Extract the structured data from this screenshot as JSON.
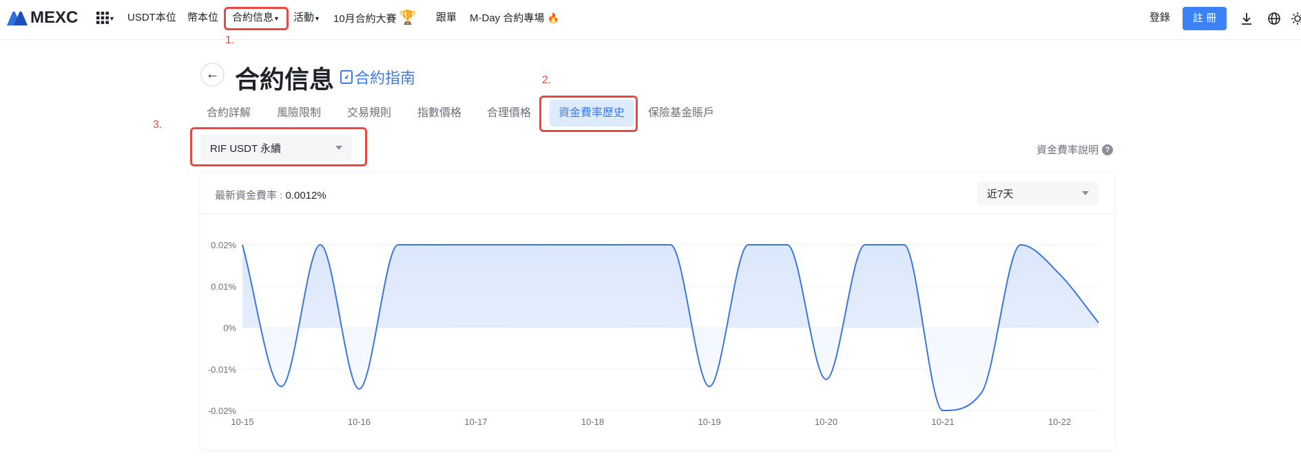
{
  "nav": {
    "logo": "MEXC",
    "items": [
      {
        "label": "USDT本位"
      },
      {
        "label": "幣本位"
      },
      {
        "label": "合約信息"
      },
      {
        "label": "活動"
      },
      {
        "label": "10月合約大賽"
      },
      {
        "label": "跟單"
      },
      {
        "label": "M-Day 合約專場"
      }
    ],
    "login": "登錄",
    "register": "註 冊"
  },
  "annotations": [
    "1.",
    "2.",
    "3."
  ],
  "page": {
    "title": "合約信息",
    "guide_link": "合約指南",
    "tabs": [
      {
        "label": "合約詳解"
      },
      {
        "label": "風險限制"
      },
      {
        "label": "交易規則"
      },
      {
        "label": "指數價格"
      },
      {
        "label": "合理價格"
      },
      {
        "label": "資金費率歷史",
        "active": true
      },
      {
        "label": "保險基金賬戶"
      }
    ],
    "contract_select": "RIF USDT 永續",
    "funding_help": "資金費率說明",
    "latest_rate_label": "最新資金費率 : ",
    "latest_rate_value": "0.0012%",
    "period_select": "近7天"
  },
  "colors": {
    "accent": "#3b82f6",
    "line": "#3a75de",
    "annotation": "#e9473f"
  },
  "chart_data": {
    "type": "area",
    "x_ticks": [
      "10-15",
      "10-16",
      "10-17",
      "10-18",
      "10-19",
      "10-20",
      "10-21",
      "10-22"
    ],
    "y_ticks": [
      "0.02%",
      "0.01%",
      "0%",
      "-0.01%",
      "-0.02%"
    ],
    "ylim": [
      -0.02,
      0.02
    ],
    "y_unit": "%",
    "grid": true,
    "x": [
      "10-15 00:00",
      "10-15 08:00",
      "10-15 16:00",
      "10-16 00:00",
      "10-16 08:00",
      "10-16 16:00",
      "10-17 00:00",
      "10-17 08:00",
      "10-17 16:00",
      "10-18 00:00",
      "10-18 08:00",
      "10-18 16:00",
      "10-19 00:00",
      "10-19 08:00",
      "10-19 16:00",
      "10-20 00:00",
      "10-20 08:00",
      "10-20 16:00",
      "10-21 00:00",
      "10-21 08:00",
      "10-21 16:00",
      "10-22 00:00",
      "10-22 08:00"
    ],
    "values": [
      0.02,
      -0.0142,
      0.02,
      -0.0148,
      0.02,
      0.02,
      0.02,
      0.02,
      0.02,
      0.02,
      0.02,
      0.02,
      -0.0142,
      0.02,
      0.02,
      -0.0125,
      0.02,
      0.02,
      -0.02,
      -0.0156,
      0.02,
      0.0129,
      0.0012
    ]
  }
}
